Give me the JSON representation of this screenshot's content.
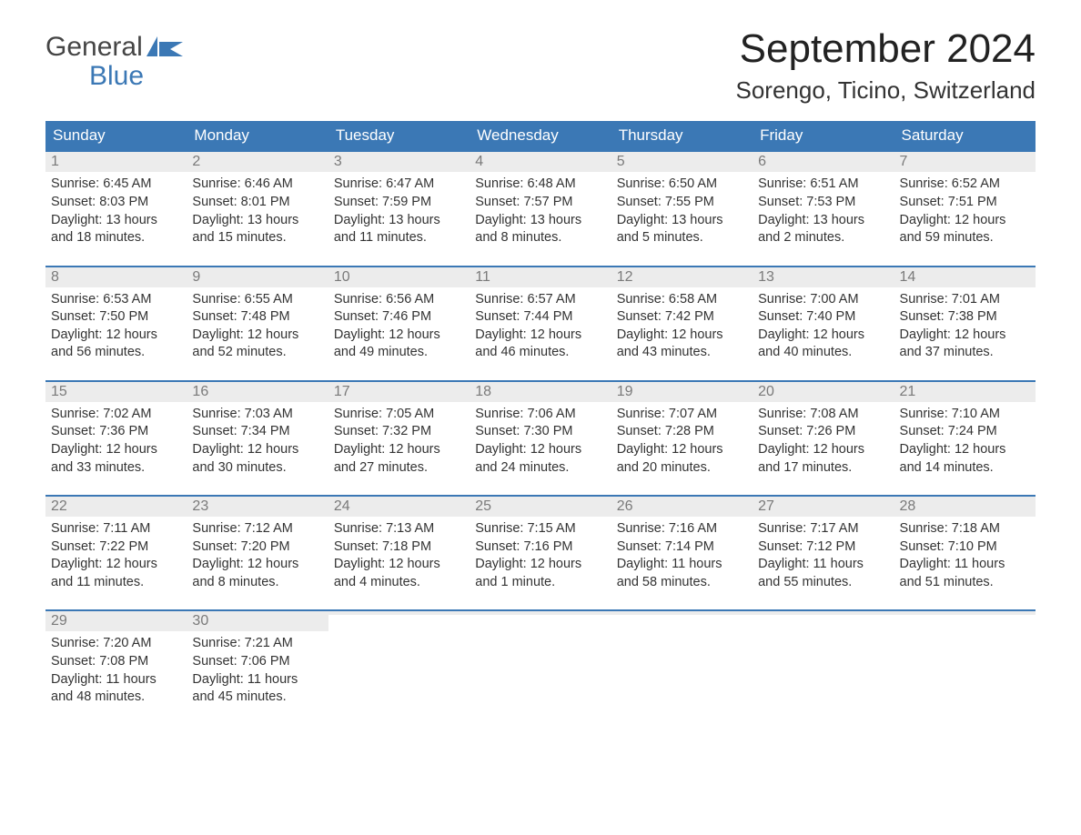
{
  "brand": {
    "word1": "General",
    "word2": "Blue"
  },
  "title": "September 2024",
  "location": "Sorengo, Ticino, Switzerland",
  "colors": {
    "header_bg": "#3b78b5",
    "header_text": "#ffffff",
    "daynum_bg": "#ececec",
    "daynum_text": "#7a7a7a",
    "body_text": "#333333",
    "logo_gray": "#454545",
    "logo_blue": "#3b78b5"
  },
  "weekdays": [
    "Sunday",
    "Monday",
    "Tuesday",
    "Wednesday",
    "Thursday",
    "Friday",
    "Saturday"
  ],
  "weeks": [
    [
      {
        "n": "1",
        "sunrise": "Sunrise: 6:45 AM",
        "sunset": "Sunset: 8:03 PM",
        "daylight": "Daylight: 13 hours and 18 minutes."
      },
      {
        "n": "2",
        "sunrise": "Sunrise: 6:46 AM",
        "sunset": "Sunset: 8:01 PM",
        "daylight": "Daylight: 13 hours and 15 minutes."
      },
      {
        "n": "3",
        "sunrise": "Sunrise: 6:47 AM",
        "sunset": "Sunset: 7:59 PM",
        "daylight": "Daylight: 13 hours and 11 minutes."
      },
      {
        "n": "4",
        "sunrise": "Sunrise: 6:48 AM",
        "sunset": "Sunset: 7:57 PM",
        "daylight": "Daylight: 13 hours and 8 minutes."
      },
      {
        "n": "5",
        "sunrise": "Sunrise: 6:50 AM",
        "sunset": "Sunset: 7:55 PM",
        "daylight": "Daylight: 13 hours and 5 minutes."
      },
      {
        "n": "6",
        "sunrise": "Sunrise: 6:51 AM",
        "sunset": "Sunset: 7:53 PM",
        "daylight": "Daylight: 13 hours and 2 minutes."
      },
      {
        "n": "7",
        "sunrise": "Sunrise: 6:52 AM",
        "sunset": "Sunset: 7:51 PM",
        "daylight": "Daylight: 12 hours and 59 minutes."
      }
    ],
    [
      {
        "n": "8",
        "sunrise": "Sunrise: 6:53 AM",
        "sunset": "Sunset: 7:50 PM",
        "daylight": "Daylight: 12 hours and 56 minutes."
      },
      {
        "n": "9",
        "sunrise": "Sunrise: 6:55 AM",
        "sunset": "Sunset: 7:48 PM",
        "daylight": "Daylight: 12 hours and 52 minutes."
      },
      {
        "n": "10",
        "sunrise": "Sunrise: 6:56 AM",
        "sunset": "Sunset: 7:46 PM",
        "daylight": "Daylight: 12 hours and 49 minutes."
      },
      {
        "n": "11",
        "sunrise": "Sunrise: 6:57 AM",
        "sunset": "Sunset: 7:44 PM",
        "daylight": "Daylight: 12 hours and 46 minutes."
      },
      {
        "n": "12",
        "sunrise": "Sunrise: 6:58 AM",
        "sunset": "Sunset: 7:42 PM",
        "daylight": "Daylight: 12 hours and 43 minutes."
      },
      {
        "n": "13",
        "sunrise": "Sunrise: 7:00 AM",
        "sunset": "Sunset: 7:40 PM",
        "daylight": "Daylight: 12 hours and 40 minutes."
      },
      {
        "n": "14",
        "sunrise": "Sunrise: 7:01 AM",
        "sunset": "Sunset: 7:38 PM",
        "daylight": "Daylight: 12 hours and 37 minutes."
      }
    ],
    [
      {
        "n": "15",
        "sunrise": "Sunrise: 7:02 AM",
        "sunset": "Sunset: 7:36 PM",
        "daylight": "Daylight: 12 hours and 33 minutes."
      },
      {
        "n": "16",
        "sunrise": "Sunrise: 7:03 AM",
        "sunset": "Sunset: 7:34 PM",
        "daylight": "Daylight: 12 hours and 30 minutes."
      },
      {
        "n": "17",
        "sunrise": "Sunrise: 7:05 AM",
        "sunset": "Sunset: 7:32 PM",
        "daylight": "Daylight: 12 hours and 27 minutes."
      },
      {
        "n": "18",
        "sunrise": "Sunrise: 7:06 AM",
        "sunset": "Sunset: 7:30 PM",
        "daylight": "Daylight: 12 hours and 24 minutes."
      },
      {
        "n": "19",
        "sunrise": "Sunrise: 7:07 AM",
        "sunset": "Sunset: 7:28 PM",
        "daylight": "Daylight: 12 hours and 20 minutes."
      },
      {
        "n": "20",
        "sunrise": "Sunrise: 7:08 AM",
        "sunset": "Sunset: 7:26 PM",
        "daylight": "Daylight: 12 hours and 17 minutes."
      },
      {
        "n": "21",
        "sunrise": "Sunrise: 7:10 AM",
        "sunset": "Sunset: 7:24 PM",
        "daylight": "Daylight: 12 hours and 14 minutes."
      }
    ],
    [
      {
        "n": "22",
        "sunrise": "Sunrise: 7:11 AM",
        "sunset": "Sunset: 7:22 PM",
        "daylight": "Daylight: 12 hours and 11 minutes."
      },
      {
        "n": "23",
        "sunrise": "Sunrise: 7:12 AM",
        "sunset": "Sunset: 7:20 PM",
        "daylight": "Daylight: 12 hours and 8 minutes."
      },
      {
        "n": "24",
        "sunrise": "Sunrise: 7:13 AM",
        "sunset": "Sunset: 7:18 PM",
        "daylight": "Daylight: 12 hours and 4 minutes."
      },
      {
        "n": "25",
        "sunrise": "Sunrise: 7:15 AM",
        "sunset": "Sunset: 7:16 PM",
        "daylight": "Daylight: 12 hours and 1 minute."
      },
      {
        "n": "26",
        "sunrise": "Sunrise: 7:16 AM",
        "sunset": "Sunset: 7:14 PM",
        "daylight": "Daylight: 11 hours and 58 minutes."
      },
      {
        "n": "27",
        "sunrise": "Sunrise: 7:17 AM",
        "sunset": "Sunset: 7:12 PM",
        "daylight": "Daylight: 11 hours and 55 minutes."
      },
      {
        "n": "28",
        "sunrise": "Sunrise: 7:18 AM",
        "sunset": "Sunset: 7:10 PM",
        "daylight": "Daylight: 11 hours and 51 minutes."
      }
    ],
    [
      {
        "n": "29",
        "sunrise": "Sunrise: 7:20 AM",
        "sunset": "Sunset: 7:08 PM",
        "daylight": "Daylight: 11 hours and 48 minutes."
      },
      {
        "n": "30",
        "sunrise": "Sunrise: 7:21 AM",
        "sunset": "Sunset: 7:06 PM",
        "daylight": "Daylight: 11 hours and 45 minutes."
      },
      {
        "n": "",
        "sunrise": "",
        "sunset": "",
        "daylight": ""
      },
      {
        "n": "",
        "sunrise": "",
        "sunset": "",
        "daylight": ""
      },
      {
        "n": "",
        "sunrise": "",
        "sunset": "",
        "daylight": ""
      },
      {
        "n": "",
        "sunrise": "",
        "sunset": "",
        "daylight": ""
      },
      {
        "n": "",
        "sunrise": "",
        "sunset": "",
        "daylight": ""
      }
    ]
  ]
}
